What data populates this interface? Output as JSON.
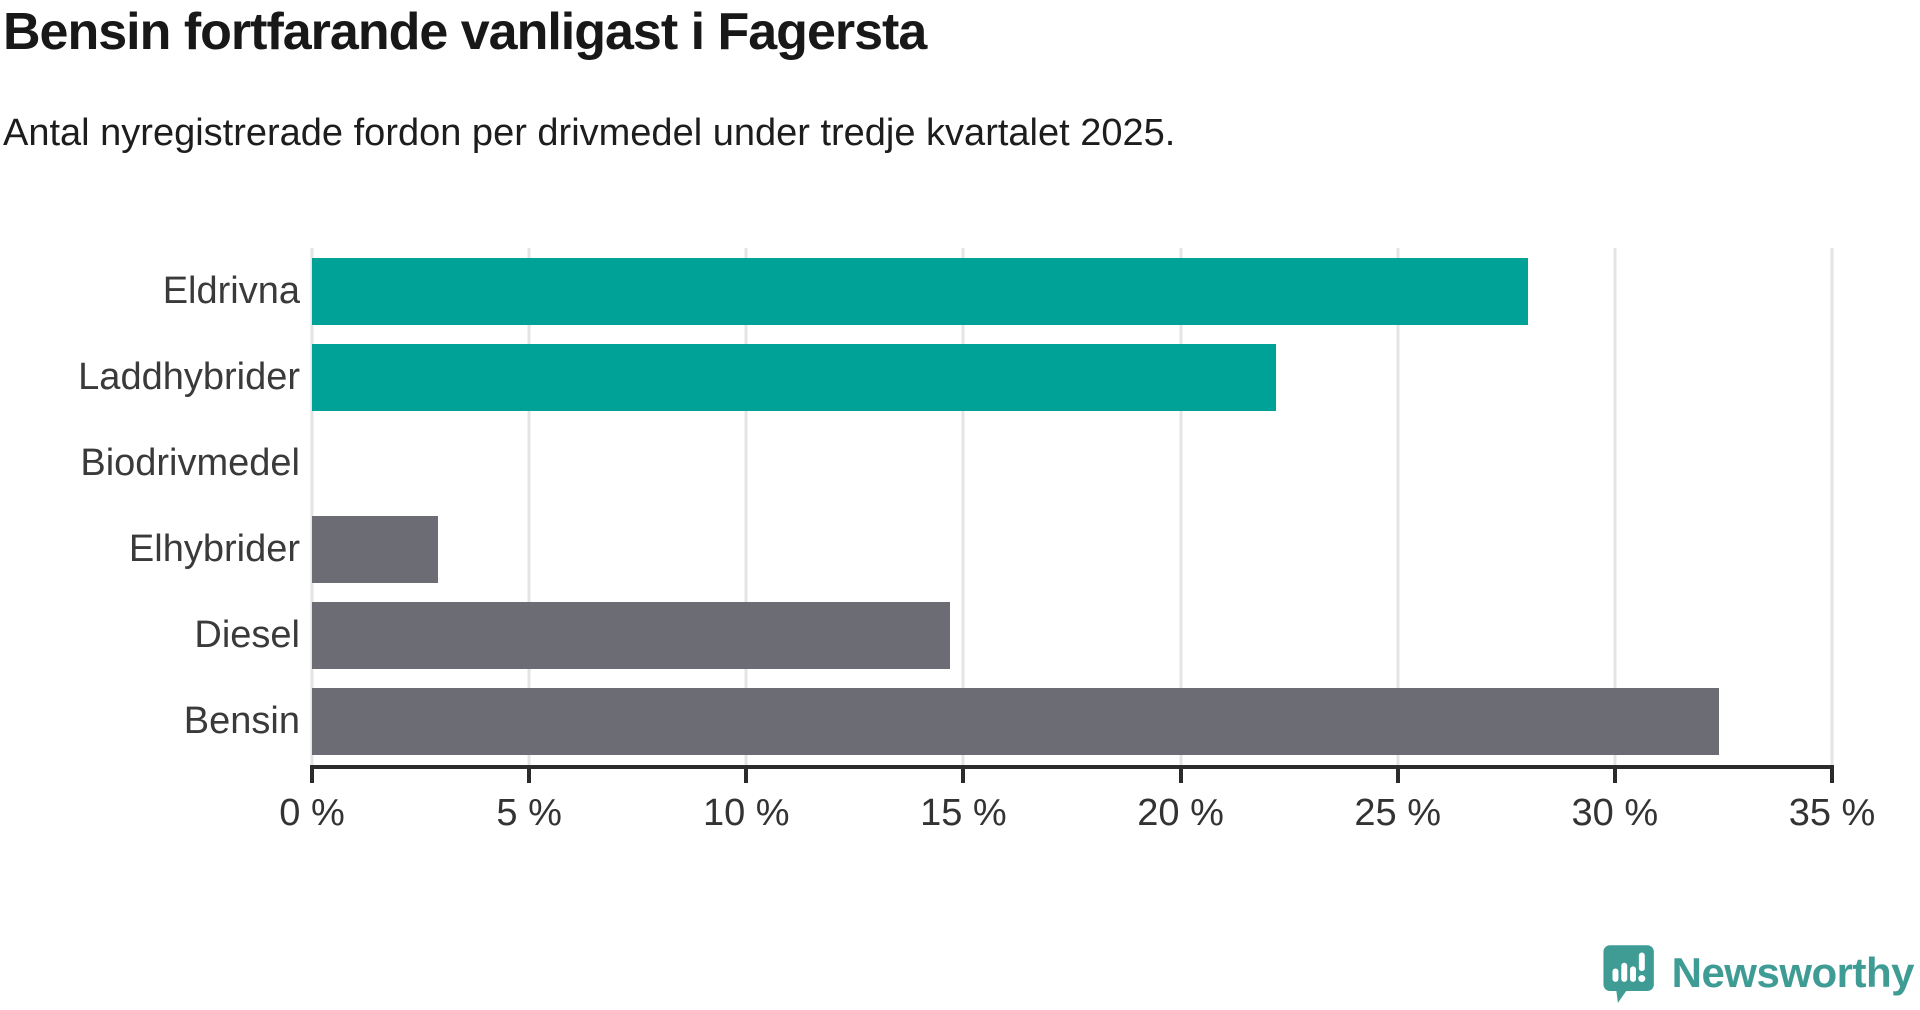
{
  "chart_data": {
    "type": "bar",
    "orientation": "horizontal",
    "title": "Bensin fortfarande vanligast i Fagersta",
    "subtitle": "Antal nyregistrerade fordon per drivmedel under tredje kvartalet 2025.",
    "categories": [
      "Eldrivna",
      "Laddhybrider",
      "Biodrivmedel",
      "Elhybrider",
      "Diesel",
      "Bensin"
    ],
    "values": [
      28.0,
      22.2,
      0,
      2.9,
      14.7,
      32.4
    ],
    "unit": "%",
    "xlim": [
      0,
      35
    ],
    "x_ticks": [
      0,
      5,
      10,
      15,
      20,
      25,
      30,
      35
    ],
    "x_tick_labels": [
      "0 %",
      "5 %",
      "10 %",
      "15 %",
      "20 %",
      "25 %",
      "30 %",
      "35 %"
    ],
    "bar_colors": [
      "#00a197",
      "#00a197",
      "#6c6c75",
      "#6c6c75",
      "#6c6c75",
      "#6c6c75"
    ],
    "grid": true,
    "legend": "none",
    "xlabel": "",
    "ylabel": ""
  },
  "colors": {
    "accent_teal": "#00a197",
    "neutral_gray": "#6c6c75",
    "gridline": "#e4e4e4",
    "axis": "#2b2b2b",
    "logo_teal": "#3e9c95"
  },
  "branding": {
    "logo_text": "Newsworthy"
  }
}
